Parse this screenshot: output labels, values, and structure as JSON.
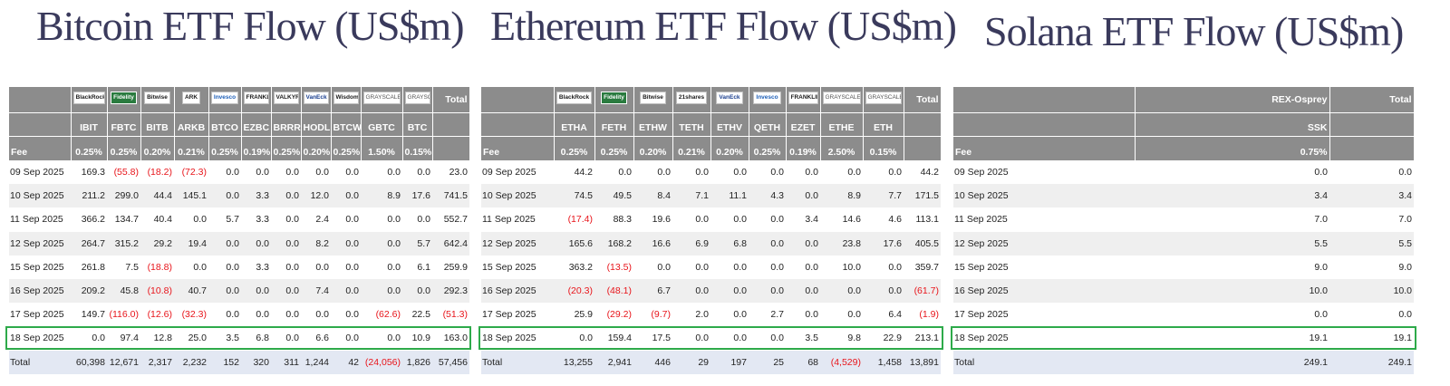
{
  "btc": {
    "title": "Bitcoin ETF Flow (US$m)",
    "issuers": [
      "BlackRock",
      "Fidelity",
      "Bitwise",
      "ARK",
      "Invesco",
      "FRANKLIN TEMPLETON",
      "VALKYRIE",
      "VanEck",
      "WisdomTree",
      "GRAYSCALE",
      "GRAYSCALE"
    ],
    "total_label": "Total",
    "tickers": [
      "IBIT",
      "FBTC",
      "BITB",
      "ARKB",
      "BTCO",
      "EZBC",
      "BRRR",
      "HODL",
      "BTCW",
      "GBTC",
      "BTC"
    ],
    "fee_label": "Fee",
    "fees": [
      "0.25%",
      "0.25%",
      "0.20%",
      "0.21%",
      "0.25%",
      "0.19%",
      "0.25%",
      "0.20%",
      "0.25%",
      "1.50%",
      "0.15%"
    ],
    "rows": [
      [
        "09 Sep 2025",
        "169.3",
        "(55.8)",
        "(18.2)",
        "(72.3)",
        "0.0",
        "0.0",
        "0.0",
        "0.0",
        "0.0",
        "0.0",
        "0.0",
        "23.0"
      ],
      [
        "10 Sep 2025",
        "211.2",
        "299.0",
        "44.4",
        "145.1",
        "0.0",
        "3.3",
        "0.0",
        "12.0",
        "0.0",
        "8.9",
        "17.6",
        "741.5"
      ],
      [
        "11 Sep 2025",
        "366.2",
        "134.7",
        "40.4",
        "0.0",
        "5.7",
        "3.3",
        "0.0",
        "2.4",
        "0.0",
        "0.0",
        "0.0",
        "552.7"
      ],
      [
        "12 Sep 2025",
        "264.7",
        "315.2",
        "29.2",
        "19.4",
        "0.0",
        "0.0",
        "0.0",
        "8.2",
        "0.0",
        "0.0",
        "5.7",
        "642.4"
      ],
      [
        "15 Sep 2025",
        "261.8",
        "7.5",
        "(18.8)",
        "0.0",
        "0.0",
        "3.3",
        "0.0",
        "0.0",
        "0.0",
        "0.0",
        "6.1",
        "259.9"
      ],
      [
        "16 Sep 2025",
        "209.2",
        "45.8",
        "(10.8)",
        "40.7",
        "0.0",
        "0.0",
        "0.0",
        "7.4",
        "0.0",
        "0.0",
        "0.0",
        "292.3"
      ],
      [
        "17 Sep 2025",
        "149.7",
        "(116.0)",
        "(12.6)",
        "(32.3)",
        "0.0",
        "0.0",
        "0.0",
        "0.0",
        "0.0",
        "(62.6)",
        "22.5",
        "(51.3)"
      ],
      [
        "18 Sep 2025",
        "0.0",
        "97.4",
        "12.8",
        "25.0",
        "3.5",
        "6.8",
        "0.0",
        "6.6",
        "0.0",
        "0.0",
        "10.9",
        "163.0"
      ]
    ],
    "total_row": [
      "Total",
      "60,398",
      "12,671",
      "2,317",
      "2,232",
      "152",
      "320",
      "311",
      "1,244",
      "42",
      "(24,056)",
      "1,826",
      "57,456"
    ]
  },
  "eth": {
    "title": "Ethereum ETF Flow (US$m)",
    "issuers": [
      "BlackRock",
      "Fidelity",
      "Bitwise",
      "21shares",
      "VanEck",
      "Invesco",
      "FRANKLIN TEMPLETON",
      "GRAYSCALE",
      "GRAYSCALE"
    ],
    "total_label": "Total",
    "tickers": [
      "ETHA",
      "FETH",
      "ETHW",
      "TETH",
      "ETHV",
      "QETH",
      "EZET",
      "ETHE",
      "ETH"
    ],
    "fee_label": "Fee",
    "fees": [
      "0.25%",
      "0.25%",
      "0.20%",
      "0.21%",
      "0.20%",
      "0.25%",
      "0.19%",
      "2.50%",
      "0.15%"
    ],
    "rows": [
      [
        "09 Sep 2025",
        "44.2",
        "0.0",
        "0.0",
        "0.0",
        "0.0",
        "0.0",
        "0.0",
        "0.0",
        "0.0",
        "44.2"
      ],
      [
        "10 Sep 2025",
        "74.5",
        "49.5",
        "8.4",
        "7.1",
        "11.1",
        "4.3",
        "0.0",
        "8.9",
        "7.7",
        "171.5"
      ],
      [
        "11 Sep 2025",
        "(17.4)",
        "88.3",
        "19.6",
        "0.0",
        "0.0",
        "0.0",
        "3.4",
        "14.6",
        "4.6",
        "113.1"
      ],
      [
        "12 Sep 2025",
        "165.6",
        "168.2",
        "16.6",
        "6.9",
        "6.8",
        "0.0",
        "0.0",
        "23.8",
        "17.6",
        "405.5"
      ],
      [
        "15 Sep 2025",
        "363.2",
        "(13.5)",
        "0.0",
        "0.0",
        "0.0",
        "0.0",
        "0.0",
        "10.0",
        "0.0",
        "359.7"
      ],
      [
        "16 Sep 2025",
        "(20.3)",
        "(48.1)",
        "6.7",
        "0.0",
        "0.0",
        "0.0",
        "0.0",
        "0.0",
        "0.0",
        "(61.7)"
      ],
      [
        "17 Sep 2025",
        "25.9",
        "(29.2)",
        "(9.7)",
        "2.0",
        "0.0",
        "2.7",
        "0.0",
        "0.0",
        "6.4",
        "(1.9)"
      ],
      [
        "18 Sep 2025",
        "0.0",
        "159.4",
        "17.5",
        "0.0",
        "0.0",
        "0.0",
        "3.5",
        "9.8",
        "22.9",
        "213.1"
      ]
    ],
    "total_row": [
      "Total",
      "13,255",
      "2,941",
      "446",
      "29",
      "197",
      "25",
      "68",
      "(4,529)",
      "1,458",
      "13,891"
    ]
  },
  "sol": {
    "title": "Solana ETF Flow (US$m)",
    "issuers": [
      "REX-Osprey"
    ],
    "total_label": "Total",
    "tickers": [
      "SSK"
    ],
    "fee_label": "Fee",
    "fees": [
      "0.75%"
    ],
    "rows": [
      [
        "09 Sep 2025",
        "0.0",
        "0.0"
      ],
      [
        "10 Sep 2025",
        "3.4",
        "3.4"
      ],
      [
        "11 Sep 2025",
        "7.0",
        "7.0"
      ],
      [
        "12 Sep 2025",
        "5.5",
        "5.5"
      ],
      [
        "15 Sep 2025",
        "9.0",
        "9.0"
      ],
      [
        "16 Sep 2025",
        "10.0",
        "10.0"
      ],
      [
        "17 Sep 2025",
        "0.0",
        "0.0"
      ],
      [
        "18 Sep 2025",
        "19.1",
        "19.1"
      ]
    ],
    "total_row": [
      "Total",
      "249.1",
      "249.1"
    ]
  },
  "colors": {
    "header_bg": "#8c8c8c",
    "negative": "#e8151b",
    "highlight_border": "#2eaa4a",
    "total_row_bg": "#e3e8f3"
  },
  "highlighted_date": "18 Sep 2025"
}
